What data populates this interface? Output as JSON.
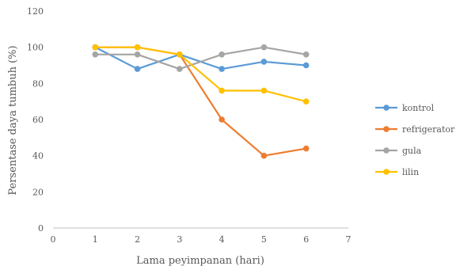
{
  "chart_data": {
    "type": "line",
    "xlabel": "Lama peyimpanan (hari)",
    "ylabel": "Persentase daya tumbuh (%)",
    "xlim": [
      0,
      7
    ],
    "ylim": [
      0,
      120
    ],
    "x_ticks": [
      0,
      1,
      2,
      3,
      4,
      5,
      6,
      7
    ],
    "y_ticks": [
      0,
      20,
      40,
      60,
      80,
      100,
      120
    ],
    "grid": false,
    "legend_position": "right",
    "x": [
      1,
      2,
      3,
      4,
      5,
      6
    ],
    "series": [
      {
        "name": "kontrol",
        "color": "#5b9bd5",
        "values": [
          100,
          88,
          96,
          88,
          92,
          90
        ]
      },
      {
        "name": "refrigerator",
        "color": "#ed7d31",
        "values": [
          100,
          100,
          96,
          60,
          40,
          44
        ]
      },
      {
        "name": "gula",
        "color": "#a5a5a5",
        "values": [
          96,
          96,
          88,
          96,
          100,
          96
        ]
      },
      {
        "name": "lilin",
        "color": "#ffc000",
        "values": [
          100,
          100,
          96,
          76,
          76,
          70
        ]
      }
    ]
  }
}
